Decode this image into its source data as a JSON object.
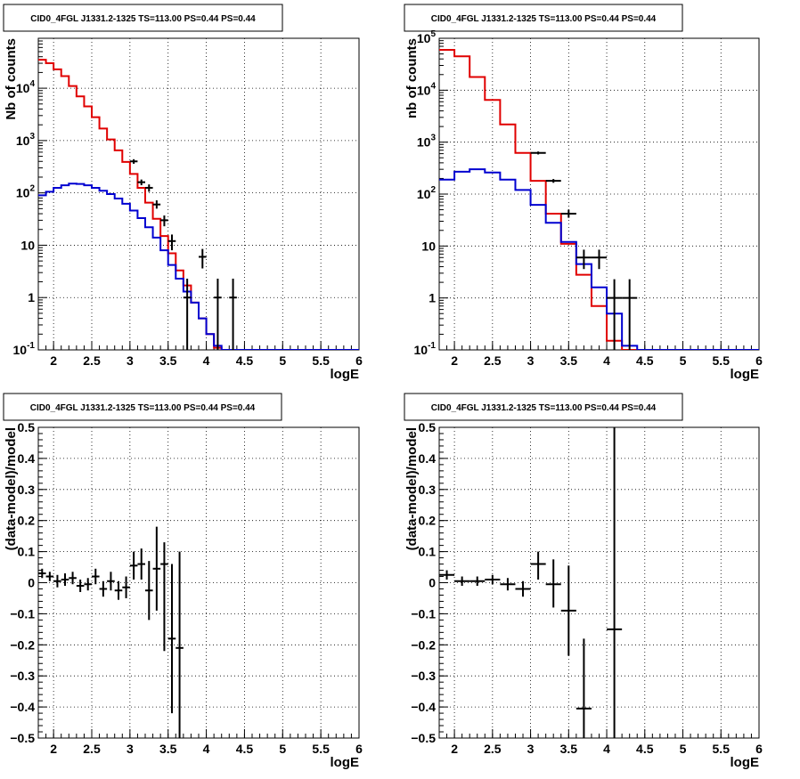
{
  "chart_data": [
    {
      "type": "step-histogram",
      "title": "CID0_4FGL J1331.2-1325 TS=113.00 PS=0.44 PS=0.44",
      "xlabel": "logE",
      "ylabel": "Nb of counts",
      "xlim": [
        1.8,
        6.0
      ],
      "ylim": [
        0.1,
        90000
      ],
      "yscale": "log",
      "grid": true,
      "xticks": [
        "2",
        "2.5",
        "3",
        "3.5",
        "4",
        "4.5",
        "5",
        "5.5",
        "6"
      ],
      "yticks": [
        "10^-1",
        "1",
        "10",
        "10^2",
        "10^3",
        "10^4"
      ],
      "bin_edges": [
        1.8,
        1.9,
        2.0,
        2.1,
        2.2,
        2.3,
        2.4,
        2.5,
        2.6,
        2.7,
        2.8,
        2.9,
        3.0,
        3.1,
        3.2,
        3.3,
        3.4,
        3.5,
        3.6,
        3.7,
        3.8,
        3.9,
        4.0,
        4.1,
        4.2,
        4.3,
        4.4,
        4.5,
        4.6,
        4.7,
        4.8,
        4.9,
        5.0,
        5.1,
        5.2,
        5.3,
        5.4,
        5.5,
        5.6,
        5.7,
        5.8,
        5.9,
        6.0
      ],
      "series": [
        {
          "color": "#e00000",
          "values": [
            35000,
            30000,
            23000,
            17000,
            11000,
            7000,
            4500,
            2800,
            1700,
            1050,
            650,
            390,
            230,
            125,
            65,
            32,
            15,
            7,
            3.3,
            1.7,
            0.8,
            0.4,
            0.2,
            0.11,
            0.1,
            0.1,
            0.1,
            0.1,
            0.1,
            0.1,
            0.1,
            0.1,
            0.1,
            0.1,
            0.1,
            0.1,
            0.1,
            0.1,
            0.1,
            0.1,
            0.1,
            0.1
          ]
        },
        {
          "color": "#0000d0",
          "values": [
            90,
            105,
            125,
            140,
            150,
            148,
            140,
            125,
            110,
            95,
            78,
            62,
            46,
            33,
            22,
            14,
            8,
            4.2,
            2.3,
            1.3,
            0.8,
            0.4,
            0.2,
            0.12,
            0.1,
            0.1,
            0.1,
            0.1,
            0.1,
            0.1,
            0.1,
            0.1,
            0.1,
            0.1,
            0.1,
            0.1,
            0.1,
            0.1,
            0.1,
            0.1,
            0.1,
            0.1
          ]
        }
      ],
      "points": [
        {
          "x": 3.05,
          "y": 400,
          "ylo": 360,
          "yhi": 440,
          "xerr": 0.05
        },
        {
          "x": 3.15,
          "y": 160,
          "ylo": 140,
          "yhi": 180,
          "xerr": 0.05
        },
        {
          "x": 3.25,
          "y": 125,
          "ylo": 105,
          "yhi": 145,
          "xerr": 0.05
        },
        {
          "x": 3.35,
          "y": 60,
          "ylo": 50,
          "yhi": 72,
          "xerr": 0.05
        },
        {
          "x": 3.45,
          "y": 30,
          "ylo": 23,
          "yhi": 37,
          "xerr": 0.05
        },
        {
          "x": 3.55,
          "y": 12,
          "ylo": 8,
          "yhi": 16,
          "xerr": 0.05
        },
        {
          "x": 3.75,
          "y": 1,
          "ylo": 0.1,
          "yhi": 2.3,
          "xerr": 0.05
        },
        {
          "x": 3.95,
          "y": 6,
          "ylo": 3.6,
          "yhi": 8.5,
          "xerr": 0.05
        },
        {
          "x": 4.15,
          "y": 1,
          "ylo": 0.1,
          "yhi": 2.3,
          "xerr": 0.05
        },
        {
          "x": 4.35,
          "y": 1,
          "ylo": 0.1,
          "yhi": 2.3,
          "xerr": 0.05
        }
      ]
    },
    {
      "type": "step-histogram",
      "title": "CID0_4FGL J1331.2-1325 TS=113.00 PS=0.44 PS=0.44",
      "xlabel": "logE",
      "ylabel": "nb of counts",
      "xlim": [
        1.8,
        6.0
      ],
      "ylim": [
        0.1,
        100000
      ],
      "yscale": "log",
      "grid": true,
      "xticks": [
        "2",
        "2.5",
        "3",
        "3.5",
        "4",
        "4.5",
        "5",
        "5.5",
        "6"
      ],
      "yticks": [
        "10^-1",
        "1",
        "10",
        "10^2",
        "10^3",
        "10^4",
        "10^5"
      ],
      "bin_edges": [
        1.8,
        2.0,
        2.2,
        2.4,
        2.6,
        2.8,
        3.0,
        3.2,
        3.4,
        3.6,
        3.8,
        4.0,
        4.2,
        4.4,
        4.6,
        4.8,
        5.0,
        5.2,
        5.4,
        5.6,
        5.8,
        6.0
      ],
      "series": [
        {
          "color": "#e00000",
          "values": [
            60000,
            45000,
            18000,
            6500,
            2200,
            620,
            180,
            42,
            11,
            2.8,
            0.7,
            0.15,
            0.1,
            0.1,
            0.1,
            0.1,
            0.1,
            0.1,
            0.1,
            0.1,
            0.1
          ]
        },
        {
          "color": "#0000d0",
          "values": [
            190,
            270,
            300,
            260,
            190,
            120,
            62,
            28,
            12,
            4.5,
            1.6,
            0.5,
            0.12,
            0.1,
            0.1,
            0.1,
            0.1,
            0.1,
            0.1,
            0.1,
            0.1
          ]
        }
      ],
      "points": [
        {
          "x": 3.1,
          "y": 620,
          "ylo": 580,
          "yhi": 660,
          "xerr": 0.1
        },
        {
          "x": 3.3,
          "y": 180,
          "ylo": 165,
          "yhi": 195,
          "xerr": 0.1
        },
        {
          "x": 3.5,
          "y": 42,
          "ylo": 35,
          "yhi": 50,
          "xerr": 0.1
        },
        {
          "x": 3.7,
          "y": 6,
          "ylo": 3.6,
          "yhi": 8.5,
          "xerr": 0.1
        },
        {
          "x": 3.9,
          "y": 6,
          "ylo": 3.6,
          "yhi": 8.5,
          "xerr": 0.1
        },
        {
          "x": 4.1,
          "y": 1,
          "ylo": 0.1,
          "yhi": 2.3,
          "xerr": 0.1
        },
        {
          "x": 4.3,
          "y": 1,
          "ylo": 0.1,
          "yhi": 2.3,
          "xerr": 0.1
        }
      ]
    },
    {
      "type": "scatter",
      "title": "CID0_4FGL J1331.2-1325 TS=113.00 PS=0.44 PS=0.44",
      "xlabel": "logE",
      "ylabel": "(data-model)/model",
      "xlim": [
        1.8,
        6.0
      ],
      "ylim": [
        -0.5,
        0.5
      ],
      "yscale": "linear",
      "grid": true,
      "xticks": [
        "2",
        "2.5",
        "3",
        "3.5",
        "4",
        "4.5",
        "5",
        "5.5",
        "6"
      ],
      "yticks": [
        "−0.5",
        "−0.4",
        "−0.3",
        "−0.2",
        "−0.1",
        "0",
        "0.1",
        "0.2",
        "0.3",
        "0.4",
        "0.5"
      ],
      "points": [
        {
          "x": 1.85,
          "y": 0.03,
          "ylo": 0.015,
          "yhi": 0.045,
          "xerr": 0.05
        },
        {
          "x": 1.95,
          "y": 0.02,
          "ylo": 0.005,
          "yhi": 0.035,
          "xerr": 0.05
        },
        {
          "x": 2.05,
          "y": 0.005,
          "ylo": -0.015,
          "yhi": 0.025,
          "xerr": 0.05
        },
        {
          "x": 2.15,
          "y": 0.01,
          "ylo": -0.01,
          "yhi": 0.03,
          "xerr": 0.05
        },
        {
          "x": 2.25,
          "y": 0.015,
          "ylo": -0.005,
          "yhi": 0.035,
          "xerr": 0.05
        },
        {
          "x": 2.35,
          "y": -0.01,
          "ylo": -0.03,
          "yhi": 0.01,
          "xerr": 0.05
        },
        {
          "x": 2.45,
          "y": -0.005,
          "ylo": -0.025,
          "yhi": 0.015,
          "xerr": 0.05
        },
        {
          "x": 2.55,
          "y": 0.02,
          "ylo": -0.005,
          "yhi": 0.045,
          "xerr": 0.05
        },
        {
          "x": 2.65,
          "y": -0.02,
          "ylo": -0.045,
          "yhi": 0.005,
          "xerr": 0.05
        },
        {
          "x": 2.75,
          "y": 0.005,
          "ylo": -0.025,
          "yhi": 0.035,
          "xerr": 0.05
        },
        {
          "x": 2.85,
          "y": -0.025,
          "ylo": -0.055,
          "yhi": 0.005,
          "xerr": 0.05
        },
        {
          "x": 2.95,
          "y": -0.015,
          "ylo": -0.05,
          "yhi": 0.02,
          "xerr": 0.05
        },
        {
          "x": 3.05,
          "y": 0.055,
          "ylo": 0.01,
          "yhi": 0.1,
          "xerr": 0.05
        },
        {
          "x": 3.15,
          "y": 0.06,
          "ylo": 0.01,
          "yhi": 0.11,
          "xerr": 0.05
        },
        {
          "x": 3.25,
          "y": -0.025,
          "ylo": -0.12,
          "yhi": 0.07,
          "xerr": 0.05
        },
        {
          "x": 3.35,
          "y": 0.045,
          "ylo": -0.09,
          "yhi": 0.18,
          "xerr": 0.05
        },
        {
          "x": 3.45,
          "y": 0.06,
          "ylo": -0.22,
          "yhi": 0.13,
          "xerr": 0.05
        },
        {
          "x": 3.55,
          "y": -0.18,
          "ylo": -0.42,
          "yhi": 0.06,
          "xerr": 0.05
        },
        {
          "x": 3.65,
          "y": -0.21,
          "ylo": -0.5,
          "yhi": 0.1,
          "xerr": 0.05
        }
      ]
    },
    {
      "type": "scatter",
      "title": "CID0_4FGL J1331.2-1325 TS=113.00 PS=0.44 PS=0.44",
      "xlabel": "logE",
      "ylabel": "(data-model)/model",
      "xlim": [
        1.8,
        6.0
      ],
      "ylim": [
        -0.5,
        0.5
      ],
      "yscale": "linear",
      "grid": true,
      "xticks": [
        "2",
        "2.5",
        "3",
        "3.5",
        "4",
        "4.5",
        "5",
        "5.5",
        "6"
      ],
      "yticks": [
        "−0.5",
        "−0.4",
        "−0.3",
        "−0.2",
        "−0.1",
        "0",
        "0.1",
        "0.2",
        "0.3",
        "0.4",
        "0.5"
      ],
      "points": [
        {
          "x": 1.9,
          "y": 0.025,
          "ylo": 0.01,
          "yhi": 0.04,
          "xerr": 0.1
        },
        {
          "x": 2.1,
          "y": 0.005,
          "ylo": -0.01,
          "yhi": 0.02,
          "xerr": 0.1
        },
        {
          "x": 2.3,
          "y": 0.005,
          "ylo": -0.01,
          "yhi": 0.02,
          "xerr": 0.1
        },
        {
          "x": 2.5,
          "y": 0.01,
          "ylo": -0.005,
          "yhi": 0.025,
          "xerr": 0.1
        },
        {
          "x": 2.7,
          "y": -0.005,
          "ylo": -0.025,
          "yhi": 0.015,
          "xerr": 0.1
        },
        {
          "x": 2.9,
          "y": -0.02,
          "ylo": -0.045,
          "yhi": 0.005,
          "xerr": 0.1
        },
        {
          "x": 3.1,
          "y": 0.06,
          "ylo": 0.01,
          "yhi": 0.1,
          "xerr": 0.1
        },
        {
          "x": 3.3,
          "y": -0.005,
          "ylo": -0.08,
          "yhi": 0.075,
          "xerr": 0.1
        },
        {
          "x": 3.5,
          "y": -0.09,
          "ylo": -0.235,
          "yhi": 0.055,
          "xerr": 0.1
        },
        {
          "x": 3.7,
          "y": -0.405,
          "ylo": -0.5,
          "yhi": -0.18,
          "xerr": 0.1
        },
        {
          "x": 4.1,
          "y": -0.15,
          "ylo": -0.5,
          "yhi": 0.5,
          "xerr": 0.1
        }
      ]
    }
  ]
}
